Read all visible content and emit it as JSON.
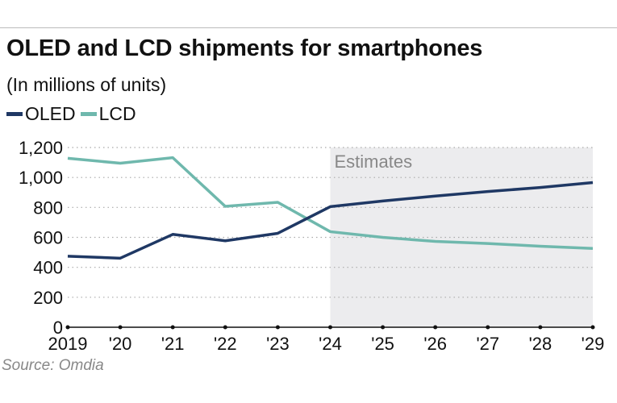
{
  "title": "OLED and LCD shipments for smartphones",
  "subtitle": "(In millions of units)",
  "source": "Source: Omdia",
  "chart_data": {
    "type": "line",
    "title": "OLED and LCD shipments for smartphones",
    "subtitle": "(In millions of units)",
    "categories": [
      "2019",
      "'20",
      "'21",
      "'22",
      "'23",
      "'24",
      "'25",
      "'26",
      "'27",
      "'28",
      "'29"
    ],
    "series": [
      {
        "name": "OLED",
        "color": "#1f3864",
        "values": [
          474,
          461,
          620,
          577,
          627,
          805,
          843,
          876,
          906,
          933,
          966
        ]
      },
      {
        "name": "LCD",
        "color": "#6fb8ad",
        "values": [
          1128,
          1095,
          1132,
          807,
          834,
          638,
          600,
          573,
          559,
          541,
          526
        ]
      }
    ],
    "ylim": [
      0,
      1200
    ],
    "yticks": [
      "0",
      "200",
      "400",
      "600",
      "800",
      "1,000",
      "1,200"
    ],
    "ytick_values": [
      0,
      200,
      400,
      600,
      800,
      1000,
      1200
    ],
    "grid": "horizontal dotted",
    "legend": "top-left",
    "shaded_region": {
      "label": "Estimates",
      "from": "'24",
      "to": "'29",
      "color": "#ececee"
    }
  }
}
